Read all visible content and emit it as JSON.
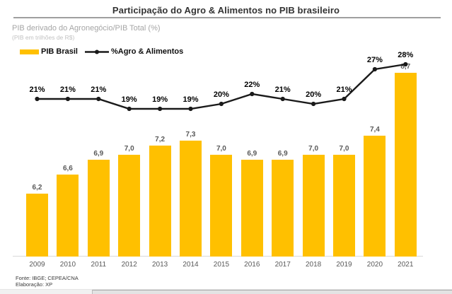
{
  "header": {
    "title": "Participação do Agro & Alimentos no PIB brasileiro",
    "subtitle": "PIB derivado do Agronegócio/PIB Total (%)",
    "note": "(PIB em trilhões de R$)"
  },
  "legend": {
    "bar_series_label": "PIB Brasil",
    "line_series_label": "%Agro & Alimentos",
    "line_marker_icon": "dash-dot-dash"
  },
  "footer": {
    "line1": "Fonte: IBGE; CEPEA/CNA",
    "line2": "Elaboração: XP"
  },
  "colors": {
    "bar": "#FFC000",
    "line": "#1a1a1a",
    "bar_label": "#595959",
    "axis": "#d9d9d9",
    "subtitle_gray": "#a6a6a6"
  },
  "chart_data": {
    "type": "bar",
    "combo": "bar+line",
    "title": "Participação do Agro & Alimentos no PIB brasileiro",
    "subtitle": "PIB derivado do Agronegócio/PIB Total (%)",
    "note": "(PIB em trilhões de R$)",
    "xlabel": "",
    "ylabel": "",
    "grid": false,
    "legend_position": "top-left",
    "categories": [
      "2009",
      "2010",
      "2011",
      "2012",
      "2013",
      "2014",
      "2015",
      "2016",
      "2017",
      "2018",
      "2019",
      "2020",
      "2021"
    ],
    "series": [
      {
        "name": "PIB Brasil",
        "type": "bar",
        "values": [
          6.2,
          6.6,
          6.9,
          7.0,
          7.2,
          7.3,
          7.0,
          6.9,
          6.9,
          7.0,
          7.0,
          7.4,
          8.7
        ],
        "labels": [
          "6,2",
          "6,6",
          "6,9",
          "7,0",
          "7,2",
          "7,3",
          "7,0",
          "6,9",
          "6,9",
          "7,0",
          "7,0",
          "7,4",
          "8,7"
        ]
      },
      {
        "name": "%Agro & Alimentos",
        "type": "line",
        "values": [
          21,
          21,
          21,
          19,
          19,
          19,
          20,
          22,
          21,
          20,
          21,
          27,
          28
        ],
        "labels": [
          "21%",
          "21%",
          "21%",
          "19%",
          "19%",
          "19%",
          "20%",
          "22%",
          "21%",
          "20%",
          "21%",
          "27%",
          "28%"
        ]
      }
    ]
  }
}
